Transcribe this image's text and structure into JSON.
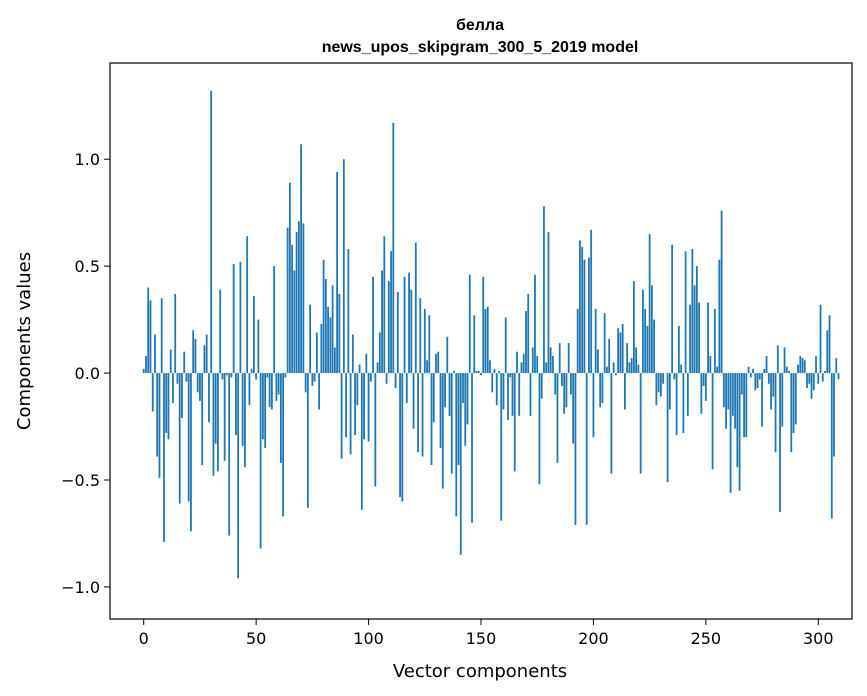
{
  "chart_data": {
    "type": "bar",
    "title": "белла",
    "subtitle": "news_upos_skipgram_300_5_2019 model",
    "xlabel": "Vector components",
    "ylabel": "Components values",
    "xlim": [
      -15,
      315
    ],
    "ylim": [
      -1.15,
      1.45
    ],
    "x_ticks": [
      0,
      50,
      100,
      150,
      200,
      250,
      300
    ],
    "x_tick_labels": [
      "0",
      "50",
      "100",
      "150",
      "200",
      "250",
      "300"
    ],
    "y_ticks": [
      -1.0,
      -0.5,
      0.0,
      0.5,
      1.0
    ],
    "y_tick_labels": [
      "−1.0",
      "−0.5",
      "0.0",
      "0.5",
      "1.0"
    ],
    "bar_color": "#1f77b4",
    "values": [
      0.02,
      0.08,
      0.4,
      0.34,
      -0.18,
      0.18,
      -0.39,
      -0.49,
      0.35,
      -0.79,
      -0.28,
      -0.31,
      0.11,
      -0.14,
      0.37,
      -0.05,
      -0.61,
      -0.21,
      0.1,
      -0.04,
      -0.6,
      -0.74,
      0.2,
      0.16,
      -0.09,
      -0.13,
      -0.43,
      0.13,
      0.18,
      -0.23,
      1.32,
      -0.48,
      -0.33,
      -0.46,
      0.39,
      -0.03,
      -0.41,
      -0.01,
      -0.76,
      -0.02,
      0.51,
      -0.29,
      -0.96,
      0.52,
      -0.34,
      -0.44,
      0.64,
      -0.15,
      0.02,
      0.36,
      -0.03,
      0.25,
      -0.82,
      -0.31,
      -0.35,
      -0.02,
      -0.16,
      -0.17,
      0.5,
      -0.13,
      -0.1,
      -0.42,
      -0.67,
      -0.02,
      0.68,
      0.89,
      0.6,
      0.48,
      0.66,
      0.71,
      1.07,
      0.7,
      -0.09,
      -0.63,
      0.32,
      -0.06,
      -0.04,
      0.19,
      -0.17,
      0.23,
      0.53,
      0.44,
      0.31,
      0.26,
      0.41,
      0.12,
      0.94,
      0.37,
      -0.4,
      1.0,
      -0.3,
      0.58,
      -0.38,
      0.18,
      -0.29,
      -0.15,
      0.04,
      -0.64,
      -0.31,
      0.09,
      -0.32,
      -0.04,
      0.45,
      -0.53,
      0.05,
      0.19,
      0.48,
      0.64,
      -0.05,
      0.43,
      0.57,
      1.17,
      -0.07,
      0.38,
      -0.58,
      -0.6,
      0.45,
      -0.14,
      0.47,
      0.39,
      -0.26,
      0.61,
      -0.37,
      0.35,
      -0.39,
      0.3,
      0.06,
      0.27,
      -0.43,
      -0.23,
      0.09,
      0.1,
      -0.35,
      -0.54,
      -0.16,
      0.17,
      -0.2,
      -0.47,
      0.01,
      -0.67,
      -0.43,
      -0.85,
      -0.14,
      -0.34,
      -0.24,
      0.46,
      -0.7,
      0.27,
      0.01,
      0.01,
      -0.01,
      0.45,
      0.3,
      0.31,
      0.06,
      -0.09,
      0.02,
      -0.15,
      0.01,
      -0.69,
      -0.17,
      0.26,
      -0.22,
      -0.02,
      -0.2,
      -0.46,
      0.1,
      -0.2,
      0.05,
      0.09,
      0.29,
      0.37,
      -0.2,
      0.12,
      0.46,
      0.08,
      -0.52,
      -0.12,
      0.78,
      0.05,
      0.66,
      0.12,
      0.08,
      -0.1,
      -0.42,
      0.14,
      -0.06,
      -0.19,
      -0.16,
      0.14,
      -0.1,
      -0.33,
      -0.71,
      0.3,
      0.62,
      0.59,
      0.53,
      -0.71,
      0.54,
      0.67,
      -0.3,
      0.3,
      0.11,
      -0.16,
      -0.14,
      0.28,
      0.03,
      0.16,
      -0.47,
      0.05,
      -0.01,
      0.21,
      0.19,
      0.23,
      -0.17,
      0.14,
      0.05,
      0.07,
      0.43,
      0.12,
      0.04,
      -0.47,
      0.39,
      0.3,
      0.22,
      0.65,
      0.41,
      0.25,
      -0.15,
      -0.09,
      -0.11,
      -0.05,
      0.0,
      -0.51,
      -0.17,
      0.6,
      -0.03,
      -0.29,
      0.22,
      0.04,
      -0.28,
      0.57,
      -0.2,
      0.32,
      0.58,
      0.41,
      0.5,
      0.33,
      -0.19,
      -0.06,
      -0.13,
      0.33,
      0.08,
      -0.45,
      0.3,
      0.03,
      0.53,
      0.76,
      -0.16,
      -0.26,
      -0.17,
      -0.56,
      -0.2,
      -0.26,
      -0.44,
      -0.55,
      -0.1,
      -0.3,
      -0.3,
      0.03,
      -0.02,
      0.02,
      -0.08,
      -0.07,
      -0.03,
      -0.25,
      0.02,
      0.08,
      -0.05,
      -0.17,
      -0.11,
      -0.37,
      0.13,
      -0.65,
      -0.25,
      0.12,
      0.03,
      0.01,
      -0.37,
      -0.28,
      -0.24,
      0.04,
      0.08,
      0.07,
      0.06,
      -0.07,
      -0.05,
      -0.12,
      -0.08,
      0.08,
      -0.05,
      0.32,
      -0.04,
      0.01,
      0.2,
      0.27,
      -0.68,
      -0.39,
      0.07,
      -0.03
    ]
  }
}
